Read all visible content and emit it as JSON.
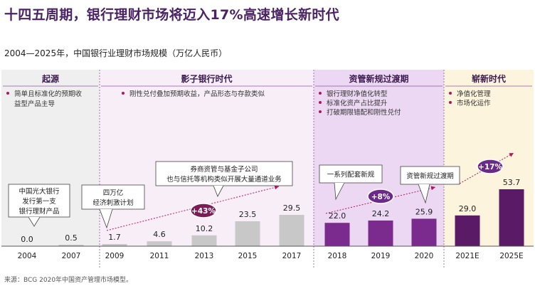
{
  "header": {
    "title": "十四五周期，银行理财市场将迈入17%高速增长新时代",
    "subtitle": "2004—2025年，中国银行业理财市场规模（万亿人民币）",
    "source": "来源：BCG 2020年中国资产管理市场模型。"
  },
  "colors": {
    "grey": "#c8c8c8",
    "purple": "#7b2a8e",
    "dark_purple": "#5a1a66",
    "accent": "#b1175c",
    "era_origin_bg": "#efefef",
    "era_shadow_bg": "#f7eef8",
    "era_transition_bg": "#ecd8f3",
    "era_new_bg": "#fcf4dc"
  },
  "eras": [
    {
      "title": "起源",
      "bullets": [
        "简单且标准化的预期收",
        "益型产品主导"
      ]
    },
    {
      "title": "影子银行时代",
      "bullets": [
        "刚性兑付叠加预期收益，产品形态与存款类似"
      ]
    },
    {
      "title": "资管新规过渡期",
      "bullets": [
        "银行理财净值化转型",
        "标准化资产占比提升",
        "打破期限错配和刚性兑付"
      ]
    },
    {
      "title": "崭新时代",
      "bullets": [
        "净值化管理",
        "市场化运作"
      ]
    }
  ],
  "callouts": [
    {
      "lines": [
        "中国光大银行",
        "发行第一支",
        "银行理财产品"
      ]
    },
    {
      "lines": [
        "四万亿",
        "经济刺激计划"
      ]
    },
    {
      "lines": [
        "券商资管与基金子公司",
        "也与信托等机构类似开展大量通道业务"
      ]
    },
    {
      "lines": [
        "一系列配套新规"
      ]
    },
    {
      "lines": [
        "资管新规过渡期"
      ]
    }
  ],
  "growth_labels": [
    "+43%",
    "+8%",
    "+17%"
  ],
  "chart_data": {
    "type": "bar",
    "title": "十四五周期，银行理财市场将迈入17%高速增长新时代",
    "subtitle": "2004—2025年，中国银行业理财市场规模（万亿人民币）",
    "categories": [
      "2004",
      "2007",
      "2009",
      "2011",
      "2013",
      "2015",
      "2017",
      "2018",
      "2019",
      "2020",
      "2021E",
      "2025E"
    ],
    "values": [
      0.0,
      0.5,
      1.7,
      4.6,
      10.2,
      23.5,
      29.5,
      22.0,
      24.2,
      25.9,
      29.0,
      53.7
    ],
    "data_labels": [
      "0.0",
      "0.5",
      "1.7",
      "4.6",
      "10.2",
      "23.5",
      "29.5",
      "22.0",
      "24.2",
      "25.9",
      "29.0",
      "53.7"
    ],
    "bar_colors": [
      "#c8c8c8",
      "#c8c8c8",
      "#c8c8c8",
      "#c8c8c8",
      "#c8c8c8",
      "#c8c8c8",
      "#c8c8c8",
      "#7b2a8e",
      "#7b2a8e",
      "#7b2a8e",
      "#5a1a66",
      "#5a1a66"
    ],
    "ylabel": "",
    "xlabel": "",
    "unit": "万亿人民币",
    "grid": false,
    "legend": "none"
  }
}
